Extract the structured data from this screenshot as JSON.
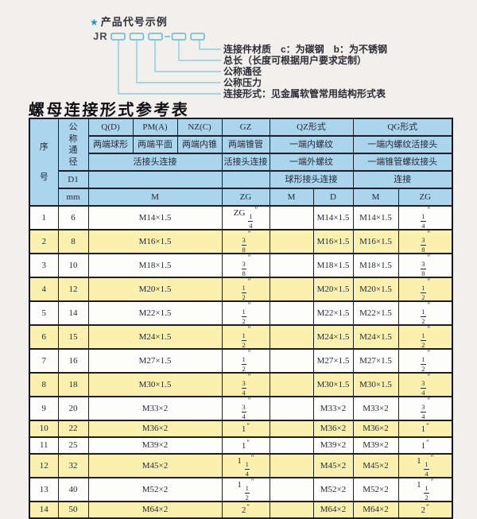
{
  "colors": {
    "header_blue": "#aad5ec",
    "row_yellow": "#f9f1ad",
    "border_dark": "#1d1d27",
    "leader_line_blue": "#8fcbe0",
    "box_outline_blue": "#63b7d8",
    "star_blue": "#1f96cc",
    "page_bg": "#f2f0ed"
  },
  "diagram": {
    "star": "★",
    "heading": "产品代号示例",
    "code": "JR",
    "labels": [
      "连接件材质　c：为碳钢　b：为不锈钢",
      "总长（长度可根据用户要求定制）",
      "公称通径",
      "公称压力",
      "连接形式：见金属软管常用结构形式表"
    ]
  },
  "table": {
    "title": "螺母连接形式参考表",
    "corner_seq": "序号",
    "corner_dn": "公称通径",
    "corner_d1": "D1",
    "corner_mm": "mm",
    "groups": [
      "Q(D)",
      "PM(A)",
      "NZ(C)",
      "GZ",
      "QZ形式",
      "QG形式"
    ],
    "types": [
      "两端球形",
      "两端平面",
      "两端内锥",
      "两端锥管",
      "一端内螺纹",
      "一端内螺纹活接头"
    ],
    "conn": [
      "活接头连接",
      "活接头连接",
      "一端外螺纹",
      "一端锥管螺纹接头"
    ],
    "conn2": [
      "球形接头连接",
      "连接"
    ],
    "units": [
      "M",
      "ZG",
      "M",
      "D",
      "M",
      "ZG"
    ],
    "rows": [
      [
        "1",
        "6",
        "M14×1.5",
        "ZG 1/4″",
        "",
        "M14×1.5",
        "M14×1.5",
        "1/4″"
      ],
      [
        "2",
        "8",
        "M16×1.5",
        "3/8″",
        "",
        "M16×1.5",
        "M16×1.5",
        "3/8″"
      ],
      [
        "3",
        "10",
        "M18×1.5",
        "3/8″",
        "",
        "M18×1.5",
        "M18×1.5",
        "3/8″"
      ],
      [
        "4",
        "12",
        "M20×1.5",
        "1/2″",
        "",
        "M20×1.5",
        "M20×1.5",
        "1/2″"
      ],
      [
        "5",
        "14",
        "M22×1.5",
        "1/2″",
        "",
        "M22×1.5",
        "M22×1.5",
        "1/2″"
      ],
      [
        "6",
        "15",
        "M24×1.5",
        "1/2″",
        "",
        "M24×1.5",
        "M24×1.5",
        "1/2″"
      ],
      [
        "7",
        "16",
        "M27×1.5",
        "1/2″",
        "",
        "M27×1.5",
        "M27×1.5",
        "1/2″"
      ],
      [
        "8",
        "18",
        "M30×1.5",
        "3/4″",
        "",
        "M30×1.5",
        "M30×1.5",
        "3/4″"
      ],
      [
        "9",
        "20",
        "M33×2",
        "3/4″",
        "",
        "M33×2",
        "M33×2",
        "3/4″"
      ],
      [
        "10",
        "22",
        "M36×2",
        "1″",
        "",
        "M36×2",
        "M36×2",
        "1″"
      ],
      [
        "11",
        "25",
        "M39×2",
        "1″",
        "",
        "M39×2",
        "M39×2",
        "1″"
      ],
      [
        "12",
        "32",
        "M45×2",
        "1 1/4″",
        "",
        "M45×2",
        "M45×2",
        "1 1/4″"
      ],
      [
        "13",
        "40",
        "M52×2",
        "1 1/2″",
        "",
        "M52×2",
        "M52×2",
        "1 1/2″"
      ],
      [
        "14",
        "50",
        "M64×2",
        "2″",
        "",
        "M64×2",
        "M64×2",
        "2″"
      ]
    ]
  }
}
